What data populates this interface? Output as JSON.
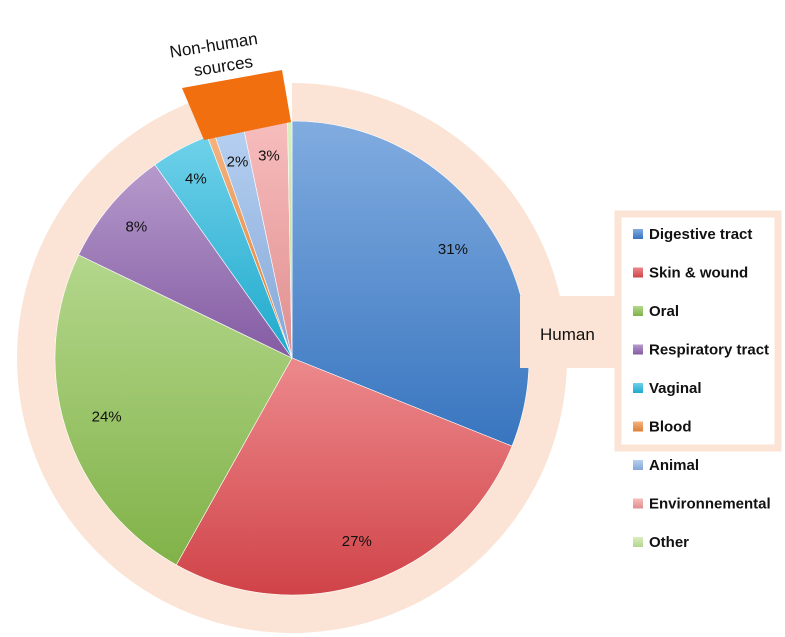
{
  "chart_data": {
    "type": "pie",
    "categories": [
      "Digestive tract",
      "Skin & wound",
      "Oral",
      "Respiratory tract",
      "Vaginal",
      "Blood",
      "Animal",
      "Environnemental",
      "Other"
    ],
    "values": [
      31,
      27,
      24,
      8,
      4,
      0.5,
      2,
      3,
      0.3
    ],
    "data_labels": [
      "31%",
      "27%",
      "24%",
      "8%",
      "4%",
      "",
      "2%",
      "3%",
      ""
    ],
    "colors": [
      "#3d7fd0",
      "#e2494e",
      "#8cc24e",
      "#8e63b0",
      "#22b8de",
      "#f08a3c",
      "#8fb6ea",
      "#f39a9a",
      "#c4e69c"
    ],
    "groups": [
      {
        "label": "Human",
        "members": [
          "Digestive tract",
          "Skin & wound",
          "Oral",
          "Respiratory tract",
          "Vaginal",
          "Blood"
        ],
        "color": "#fbe4d5"
      },
      {
        "label_lines": [
          "Non-human",
          "sources"
        ],
        "members": [
          "Animal",
          "Environnemental",
          "Other"
        ],
        "color": "#f26f0f"
      }
    ],
    "legend_position": "right"
  }
}
